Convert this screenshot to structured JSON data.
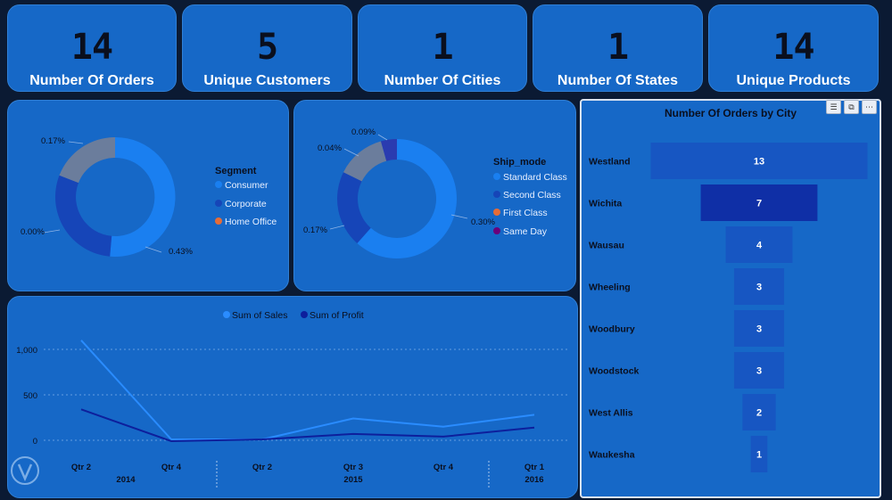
{
  "kpis": [
    {
      "value": "14",
      "label": "Number Of Orders"
    },
    {
      "value": "5",
      "label": "Unique Customers"
    },
    {
      "value": "1",
      "label": "Number Of Cities"
    },
    {
      "value": "1",
      "label": "Number Of States"
    },
    {
      "value": "14",
      "label": "Unique Products"
    }
  ],
  "segment_chart": {
    "legend_title": "Segment",
    "items": [
      {
        "label": "Consumer",
        "color": "#1a7ff0"
      },
      {
        "label": "Corporate",
        "color": "#1645b8"
      },
      {
        "label": "Home Office",
        "color": "#e66c37"
      }
    ],
    "labels": {
      "consumer": "0.43%",
      "corporate": "0.00%",
      "home_office": "0.17%"
    }
  },
  "ship_chart": {
    "legend_title": "Ship_mode",
    "items": [
      {
        "label": "Standard Class",
        "color": "#1a7ff0"
      },
      {
        "label": "Second Class",
        "color": "#1645b8"
      },
      {
        "label": "First Class",
        "color": "#e66c37"
      },
      {
        "label": "Same Day",
        "color": "#6b007b"
      }
    ],
    "labels": {
      "standard": "0.30%",
      "second": "0.17%",
      "first": "0.04%",
      "same_day": "0.09%"
    }
  },
  "funnel": {
    "title": "Number Of Orders  by City",
    "toolbar": {
      "filter": "filter-icon",
      "focus": "focus-mode-icon",
      "more": "more-options-icon"
    },
    "cities": [
      "Westland",
      "Wichita",
      "Wausau",
      "Wheeling",
      "Woodbury",
      "Woodstock",
      "West Allis",
      "Waukesha"
    ],
    "values": [
      13,
      7,
      4,
      3,
      3,
      3,
      2,
      1
    ],
    "labels": [
      "13",
      "7",
      "4",
      "3",
      "3",
      "3",
      "2",
      "1"
    ]
  },
  "line_chart": {
    "legend": [
      "Sum of Sales",
      "Sum of Profit"
    ],
    "colors": {
      "sales": "#2a8cff",
      "profit": "#0d1f9c"
    },
    "y_ticks": [
      "1,000",
      "500",
      "0"
    ],
    "quarters": [
      "Qtr 2",
      "Qtr 4",
      "Qtr 2",
      "Qtr 3",
      "Qtr 4",
      "Qtr 1"
    ],
    "years": [
      "2014",
      "2015",
      "2016"
    ]
  },
  "chart_data": [
    {
      "type": "pie",
      "legend_title": "Segment",
      "categories": [
        "Consumer",
        "Corporate",
        "Home Office"
      ],
      "labels": [
        "0.43%",
        "0.00%",
        "0.17%"
      ],
      "values": [
        0.43,
        0.0,
        0.17
      ]
    },
    {
      "type": "pie",
      "legend_title": "Ship_mode",
      "categories": [
        "Standard Class",
        "Second Class",
        "First Class",
        "Same Day"
      ],
      "labels": [
        "0.30%",
        "0.17%",
        "0.04%",
        "0.09%"
      ],
      "values": [
        0.3,
        0.17,
        0.04,
        0.09
      ]
    },
    {
      "type": "bar",
      "title": "Number Of Orders  by City",
      "categories": [
        "Westland",
        "Wichita",
        "Wausau",
        "Wheeling",
        "Woodbury",
        "Woodstock",
        "West Allis",
        "Waukesha"
      ],
      "values": [
        13,
        7,
        4,
        3,
        3,
        3,
        2,
        1
      ]
    },
    {
      "type": "line",
      "x": [
        "Qtr 2 2014",
        "Qtr 4 2014",
        "Qtr 2 2015",
        "Qtr 3 2015",
        "Qtr 4 2015",
        "Qtr 1 2016"
      ],
      "series": [
        {
          "name": "Sum of Sales",
          "values": [
            1100,
            10,
            10,
            240,
            150,
            280
          ]
        },
        {
          "name": "Sum of Profit",
          "values": [
            340,
            -10,
            10,
            70,
            40,
            140
          ]
        }
      ],
      "ylim": [
        0,
        1000
      ]
    }
  ]
}
